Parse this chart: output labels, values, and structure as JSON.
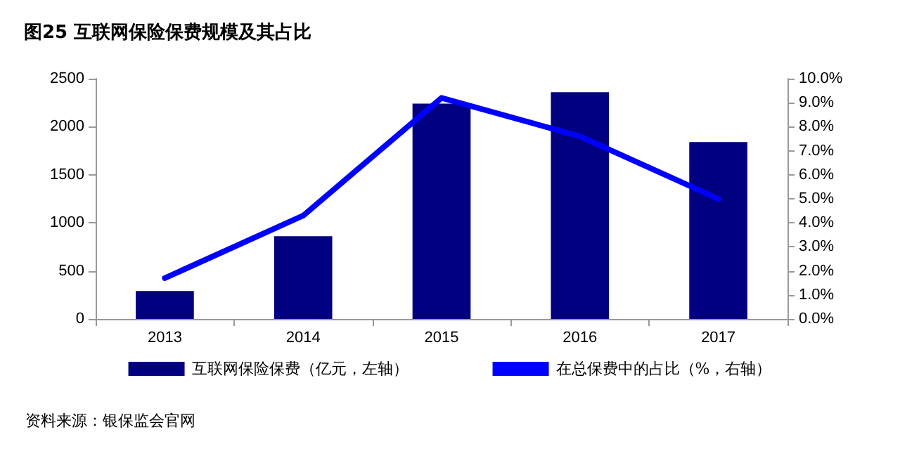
{
  "chart_data": {
    "type": "bar",
    "title": "图25 互联网保险保费规模及其占比",
    "categories": [
      "2013",
      "2014",
      "2015",
      "2016",
      "2017"
    ],
    "series": [
      {
        "name": "互联网保险保费（亿元，左轴）",
        "color": "#000080",
        "values": [
          290,
          860,
          2240,
          2360,
          1840
        ]
      },
      {
        "name": "在总保费中的占比（%，右轴）",
        "type": "line",
        "axis": "y2",
        "color": "#0000ff",
        "values": [
          1.7,
          4.3,
          9.2,
          7.6,
          5.0
        ]
      }
    ],
    "ylim": [
      0,
      2500
    ],
    "yticks": [
      0,
      500,
      1000,
      1500,
      2000,
      2500
    ],
    "y2lim": [
      0,
      10
    ],
    "y2ticks": [
      {
        "value": 0,
        "label": "0.0%"
      },
      {
        "value": 1,
        "label": "1.0%"
      },
      {
        "value": 2,
        "label": "2.0%"
      },
      {
        "value": 3,
        "label": "3.0%"
      },
      {
        "value": 4,
        "label": "4.0%"
      },
      {
        "value": 5,
        "label": "5.0%"
      },
      {
        "value": 6,
        "label": "6.0%"
      },
      {
        "value": 7,
        "label": "7.0%"
      },
      {
        "value": 8,
        "label": "8.0%"
      },
      {
        "value": 9,
        "label": "9.0%"
      },
      {
        "value": 10,
        "label": "10.0%"
      }
    ],
    "grid": false,
    "legend": "bottom",
    "marker": "none",
    "annotations": [
      "资料来源：银保监会官网"
    ]
  }
}
